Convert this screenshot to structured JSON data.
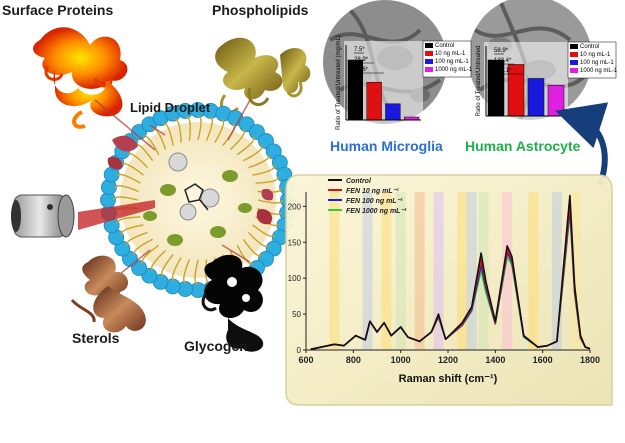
{
  "labels": {
    "surface_proteins": "Surface Proteins",
    "phospholipids": "Phospholipids",
    "lipid_droplet": "Lipid Droplet",
    "sterols": "Sterols",
    "glycogen": "Glycogen",
    "microglia": "Human Microglia",
    "astrocyte": "Human Astrocyte"
  },
  "colors": {
    "microglia": "#2a6fd6",
    "astrocyte": "#1fb04a",
    "droplet_shell": "#2eaee0",
    "arrow": "#163e7a",
    "spectra_panel": "#f4efc8"
  },
  "chart_data": [
    {
      "type": "bar",
      "panel": "microglia",
      "ylabel": "Ratio of Treated/Untreated (mg/mL)",
      "categories": [
        "Control",
        "10 ng mL-1",
        "100 ng mL-1",
        "1000 ng mL-1"
      ],
      "values": [
        1.0,
        0.63,
        0.27,
        0.05
      ],
      "colors": [
        "#000000",
        "#e01010",
        "#1a1adf",
        "#e020e0"
      ],
      "legend": [
        "Control",
        "10 ng mL-1",
        "100 ng mL-1",
        "1000 ng mL-1"
      ],
      "annotations": [
        "7.5*",
        "28.9*",
        "42.6*"
      ]
    },
    {
      "type": "bar",
      "panel": "astrocyte",
      "ylabel": "Ratio of Treated/Untreated",
      "categories": [
        "Control",
        "10 ng mL-1",
        "100 ng mL-1",
        "1000 ng mL-1"
      ],
      "values": [
        1.0,
        0.92,
        0.67,
        0.55
      ],
      "colors": [
        "#000000",
        "#e01010",
        "#1a1adf",
        "#e020e0"
      ],
      "legend": [
        "Control",
        "10 ng mL-1",
        "100 ng mL-1",
        "1000 ng mL-1"
      ],
      "annotations": [
        "58.9*",
        "133.4*",
        "105.1*"
      ]
    },
    {
      "type": "line",
      "panel": "raman",
      "xlabel": "Raman shift (cm⁻¹)",
      "xlim": [
        600,
        1800
      ],
      "ylim": [
        0,
        220
      ],
      "xticks": [
        600,
        800,
        1000,
        1200,
        1400,
        1600,
        1800
      ],
      "yticks": [
        0,
        50,
        100,
        150,
        200
      ],
      "legend": [
        "Control",
        "FEN 10 ng mL⁻¹",
        "FEN 100 ng mL⁻¹",
        "FEN 1000 ng mL⁻¹"
      ],
      "series": [
        {
          "name": "Control",
          "color": "#111111",
          "points": [
            [
              620,
              1
            ],
            [
              720,
              8
            ],
            [
              760,
              6
            ],
            [
              810,
              20
            ],
            [
              850,
              14
            ],
            [
              870,
              40
            ],
            [
              900,
              25
            ],
            [
              930,
              38
            ],
            [
              960,
              20
            ],
            [
              1000,
              32
            ],
            [
              1030,
              18
            ],
            [
              1080,
              12
            ],
            [
              1130,
              25
            ],
            [
              1160,
              50
            ],
            [
              1190,
              15
            ],
            [
              1260,
              38
            ],
            [
              1300,
              60
            ],
            [
              1340,
              135
            ],
            [
              1360,
              95
            ],
            [
              1400,
              40
            ],
            [
              1450,
              145
            ],
            [
              1470,
              130
            ],
            [
              1520,
              20
            ],
            [
              1580,
              4
            ],
            [
              1620,
              6
            ],
            [
              1660,
              12
            ],
            [
              1700,
              160
            ],
            [
              1715,
              215
            ],
            [
              1735,
              90
            ],
            [
              1760,
              20
            ],
            [
              1780,
              4
            ],
            [
              1800,
              2
            ]
          ]
        },
        {
          "name": "FEN 10 ng mL⁻¹",
          "color": "#e01010",
          "points": [
            [
              620,
              1
            ],
            [
              720,
              8
            ],
            [
              760,
              6
            ],
            [
              810,
              20
            ],
            [
              850,
              14
            ],
            [
              870,
              40
            ],
            [
              900,
              25
            ],
            [
              930,
              38
            ],
            [
              960,
              20
            ],
            [
              1000,
              32
            ],
            [
              1030,
              18
            ],
            [
              1080,
              12
            ],
            [
              1130,
              25
            ],
            [
              1160,
              48
            ],
            [
              1190,
              15
            ],
            [
              1260,
              36
            ],
            [
              1300,
              58
            ],
            [
              1340,
              125
            ],
            [
              1360,
              90
            ],
            [
              1400,
              38
            ],
            [
              1450,
              140
            ],
            [
              1470,
              125
            ],
            [
              1520,
              20
            ],
            [
              1580,
              4
            ],
            [
              1620,
              6
            ],
            [
              1660,
              12
            ],
            [
              1700,
              150
            ],
            [
              1715,
              205
            ],
            [
              1735,
              85
            ],
            [
              1760,
              18
            ],
            [
              1780,
              4
            ],
            [
              1800,
              2
            ]
          ]
        },
        {
          "name": "FEN 100 ng mL⁻¹",
          "color": "#1a1adf",
          "points": [
            [
              620,
              1
            ],
            [
              720,
              8
            ],
            [
              760,
              6
            ],
            [
              810,
              20
            ],
            [
              850,
              14
            ],
            [
              870,
              40
            ],
            [
              900,
              25
            ],
            [
              930,
              38
            ],
            [
              960,
              20
            ],
            [
              1000,
              32
            ],
            [
              1030,
              18
            ],
            [
              1080,
              12
            ],
            [
              1130,
              25
            ],
            [
              1160,
              47
            ],
            [
              1190,
              15
            ],
            [
              1260,
              35
            ],
            [
              1300,
              56
            ],
            [
              1340,
              118
            ],
            [
              1360,
              86
            ],
            [
              1400,
              37
            ],
            [
              1450,
              136
            ],
            [
              1470,
              122
            ],
            [
              1520,
              19
            ],
            [
              1580,
              4
            ],
            [
              1620,
              6
            ],
            [
              1660,
              12
            ],
            [
              1700,
              145
            ],
            [
              1715,
              198
            ],
            [
              1735,
              82
            ],
            [
              1760,
              17
            ],
            [
              1780,
              4
            ],
            [
              1800,
              2
            ]
          ]
        },
        {
          "name": "FEN 1000 ng mL⁻¹",
          "color": "#2fd12f",
          "points": [
            [
              620,
              1
            ],
            [
              720,
              8
            ],
            [
              760,
              6
            ],
            [
              810,
              20
            ],
            [
              850,
              14
            ],
            [
              870,
              40
            ],
            [
              900,
              25
            ],
            [
              930,
              38
            ],
            [
              960,
              20
            ],
            [
              1000,
              32
            ],
            [
              1030,
              18
            ],
            [
              1080,
              12
            ],
            [
              1130,
              25
            ],
            [
              1160,
              45
            ],
            [
              1190,
              15
            ],
            [
              1260,
              34
            ],
            [
              1300,
              54
            ],
            [
              1340,
              110
            ],
            [
              1360,
              80
            ],
            [
              1400,
              36
            ],
            [
              1450,
              130
            ],
            [
              1470,
              118
            ],
            [
              1520,
              18
            ],
            [
              1580,
              4
            ],
            [
              1620,
              6
            ],
            [
              1660,
              12
            ],
            [
              1700,
              140
            ],
            [
              1715,
              190
            ],
            [
              1735,
              78
            ],
            [
              1760,
              16
            ],
            [
              1780,
              4
            ],
            [
              1800,
              2
            ]
          ]
        }
      ]
    }
  ]
}
